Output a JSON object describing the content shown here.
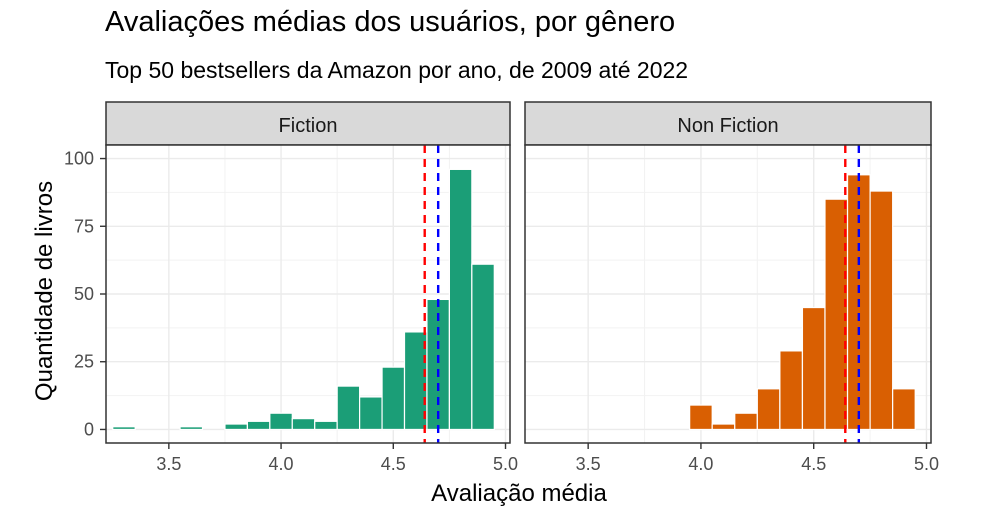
{
  "title": "Avaliações médias dos usuários, por gênero",
  "subtitle": "Top 50 bestsellers da Amazon por ano, de 2009 até 2022",
  "chart_data": {
    "type": "bar",
    "xlabel": "Avaliação média",
    "ylabel": "Quantidade de livros",
    "xlim": [
      3.22,
      5.02
    ],
    "ylim": [
      -5,
      105
    ],
    "xticks": [
      "3.5",
      "4.0",
      "4.5",
      "5.0"
    ],
    "yticks": [
      "0",
      "25",
      "50",
      "75",
      "100"
    ],
    "bin_width": 0.1,
    "grid": true,
    "mean_color": "#ff0000",
    "median_color": "#0000ff",
    "panels": [
      {
        "name": "Fiction",
        "color": "#1b9e77",
        "bins": [
          3.3,
          3.4,
          3.5,
          3.6,
          3.7,
          3.8,
          3.9,
          4.0,
          4.1,
          4.2,
          4.3,
          4.4,
          4.5,
          4.6,
          4.7,
          4.8,
          4.9
        ],
        "values": [
          1,
          0,
          0,
          1,
          0,
          2,
          3,
          6,
          4,
          3,
          16,
          12,
          23,
          36,
          48,
          96,
          61
        ],
        "mean": 4.64,
        "median": 4.7
      },
      {
        "name": "Non Fiction",
        "color": "#d95f02",
        "bins": [
          4.0,
          4.1,
          4.2,
          4.3,
          4.4,
          4.5,
          4.6,
          4.7,
          4.8,
          4.9
        ],
        "values": [
          9,
          2,
          6,
          15,
          29,
          45,
          85,
          94,
          88,
          15
        ],
        "mean": 4.64,
        "median": 4.7
      }
    ]
  }
}
